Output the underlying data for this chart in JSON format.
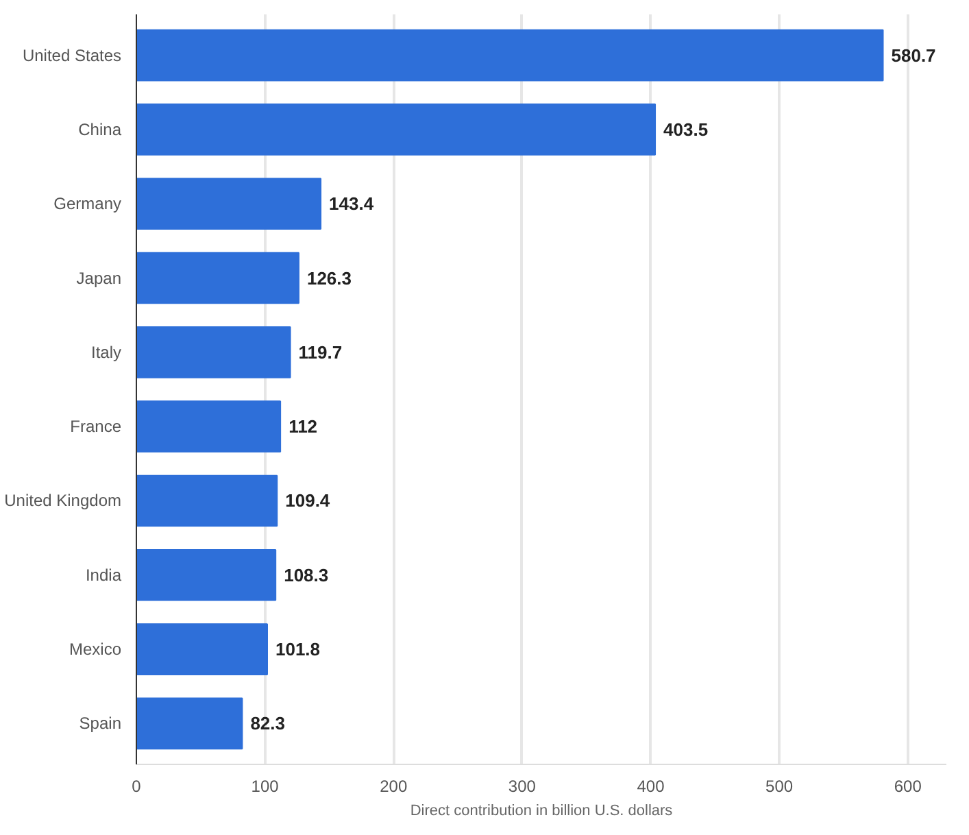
{
  "chart_data": {
    "type": "bar",
    "orientation": "horizontal",
    "xlabel": "Direct contribution in billion U.S. dollars",
    "categories": [
      "United States",
      "China",
      "Germany",
      "Japan",
      "Italy",
      "France",
      "United Kingdom",
      "India",
      "Mexico",
      "Spain"
    ],
    "values": [
      580.7,
      403.5,
      143.4,
      126.3,
      119.7,
      112,
      109.4,
      108.3,
      101.8,
      82.3
    ],
    "color": "#2e6fd9",
    "xlim": [
      0,
      630
    ],
    "xticks": [
      0,
      100,
      200,
      300,
      400,
      500,
      600
    ],
    "grid": "x",
    "data_labels": true
  }
}
